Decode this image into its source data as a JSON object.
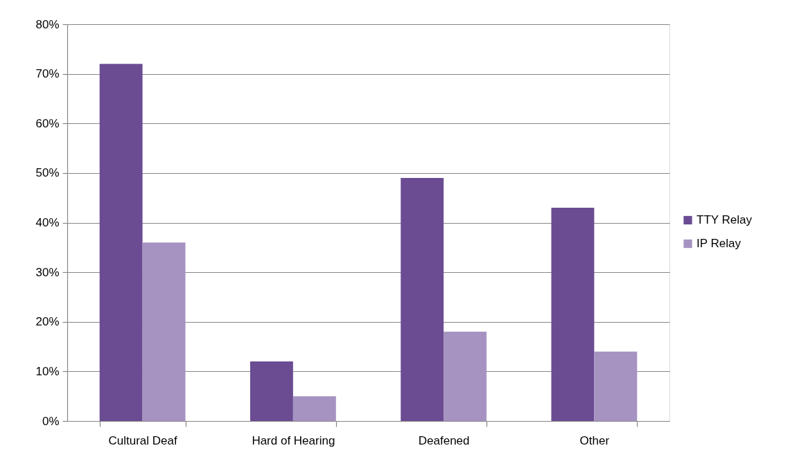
{
  "chart_data": {
    "type": "bar",
    "categories": [
      "Cultural Deaf",
      "Hard of Hearing",
      "Deafened",
      "Other"
    ],
    "series": [
      {
        "name": "TTY Relay",
        "color": "#6b4c93",
        "values": [
          72,
          12,
          49,
          43
        ]
      },
      {
        "name": "IP Relay",
        "color": "#a693c2",
        "values": [
          36,
          5,
          18,
          14
        ]
      }
    ],
    "ylim": [
      0,
      80
    ],
    "yticks": [
      {
        "value": 0,
        "label": "0%"
      },
      {
        "value": 10,
        "label": "10%"
      },
      {
        "value": 20,
        "label": "20%"
      },
      {
        "value": 30,
        "label": "30%"
      },
      {
        "value": 40,
        "label": "40%"
      },
      {
        "value": 50,
        "label": "50%"
      },
      {
        "value": 60,
        "label": "60%"
      },
      {
        "value": 70,
        "label": "70%"
      },
      {
        "value": 80,
        "label": "80%"
      }
    ],
    "grid": "y",
    "legend": "right"
  }
}
